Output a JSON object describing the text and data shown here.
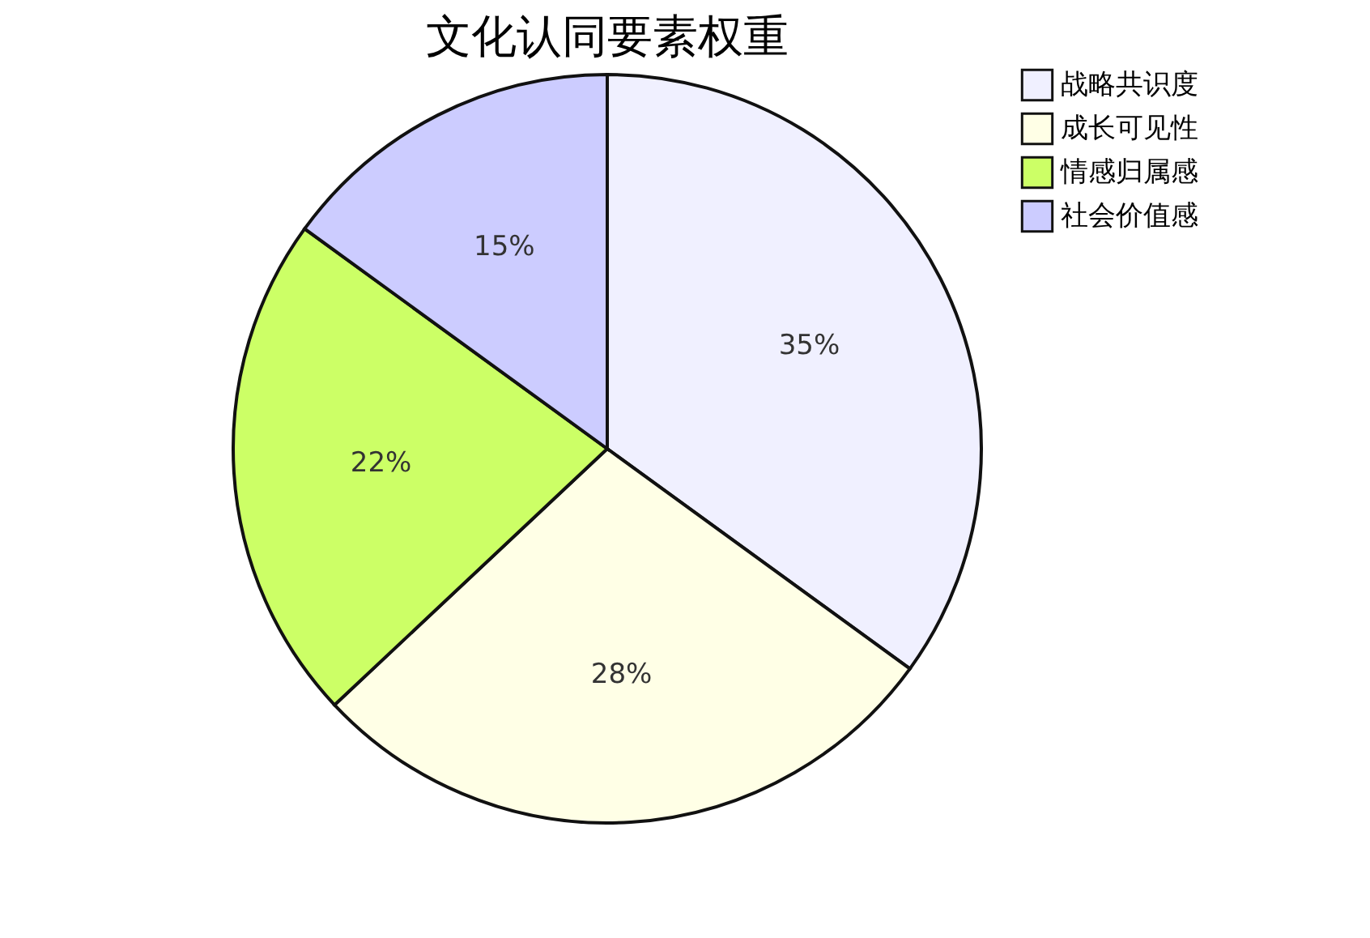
{
  "chart_data": {
    "type": "pie",
    "title": "文化认同要素权重",
    "categories": [
      "战略共识度",
      "成长可见性",
      "情感归属感",
      "社会价值感"
    ],
    "values": [
      35,
      28,
      22,
      15
    ],
    "value_labels": [
      "35%",
      "28%",
      "22%",
      "15%"
    ],
    "colors": [
      "#f0f0ff",
      "#ffffe6",
      "#ccff66",
      "#ccccff"
    ],
    "legend": "right"
  }
}
